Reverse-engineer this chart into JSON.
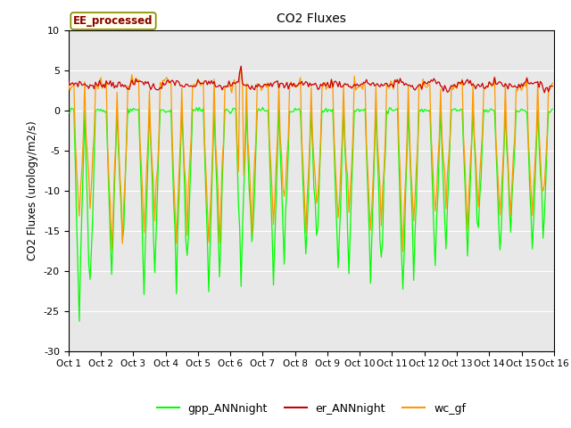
{
  "title": "CO2 Fluxes",
  "ylabel": "CO2 Fluxes (urology/m2/s)",
  "ylim": [
    -30,
    10
  ],
  "xlim": [
    0,
    360
  ],
  "bg_color": "#e8e8e8",
  "fig_color": "#ffffff",
  "annotation_text": "EE_processed",
  "annotation_facecolor": "#ffffee",
  "annotation_edgecolor": "#888800",
  "line_colors": {
    "gpp": "#00ff00",
    "er": "#cc0000",
    "wc": "#ff9900"
  },
  "legend_labels": [
    "gpp_ANNnight",
    "er_ANNnight",
    "wc_gf"
  ],
  "xtick_labels": [
    "Oct 1",
    "Oct 2",
    "Oct 3",
    "Oct 4",
    "Oct 5",
    "Oct 6",
    "Oct 7",
    "Oct 8",
    "Oct 9",
    "Oct 10",
    "Oct 11",
    "Oct 12",
    "Oct 13",
    "Oct 14",
    "Oct 15",
    "Oct 16"
  ],
  "ytick_labels": [
    10,
    5,
    0,
    -5,
    -10,
    -15,
    -20,
    -25,
    -30
  ],
  "n_points": 360,
  "pts_per_day": 24
}
